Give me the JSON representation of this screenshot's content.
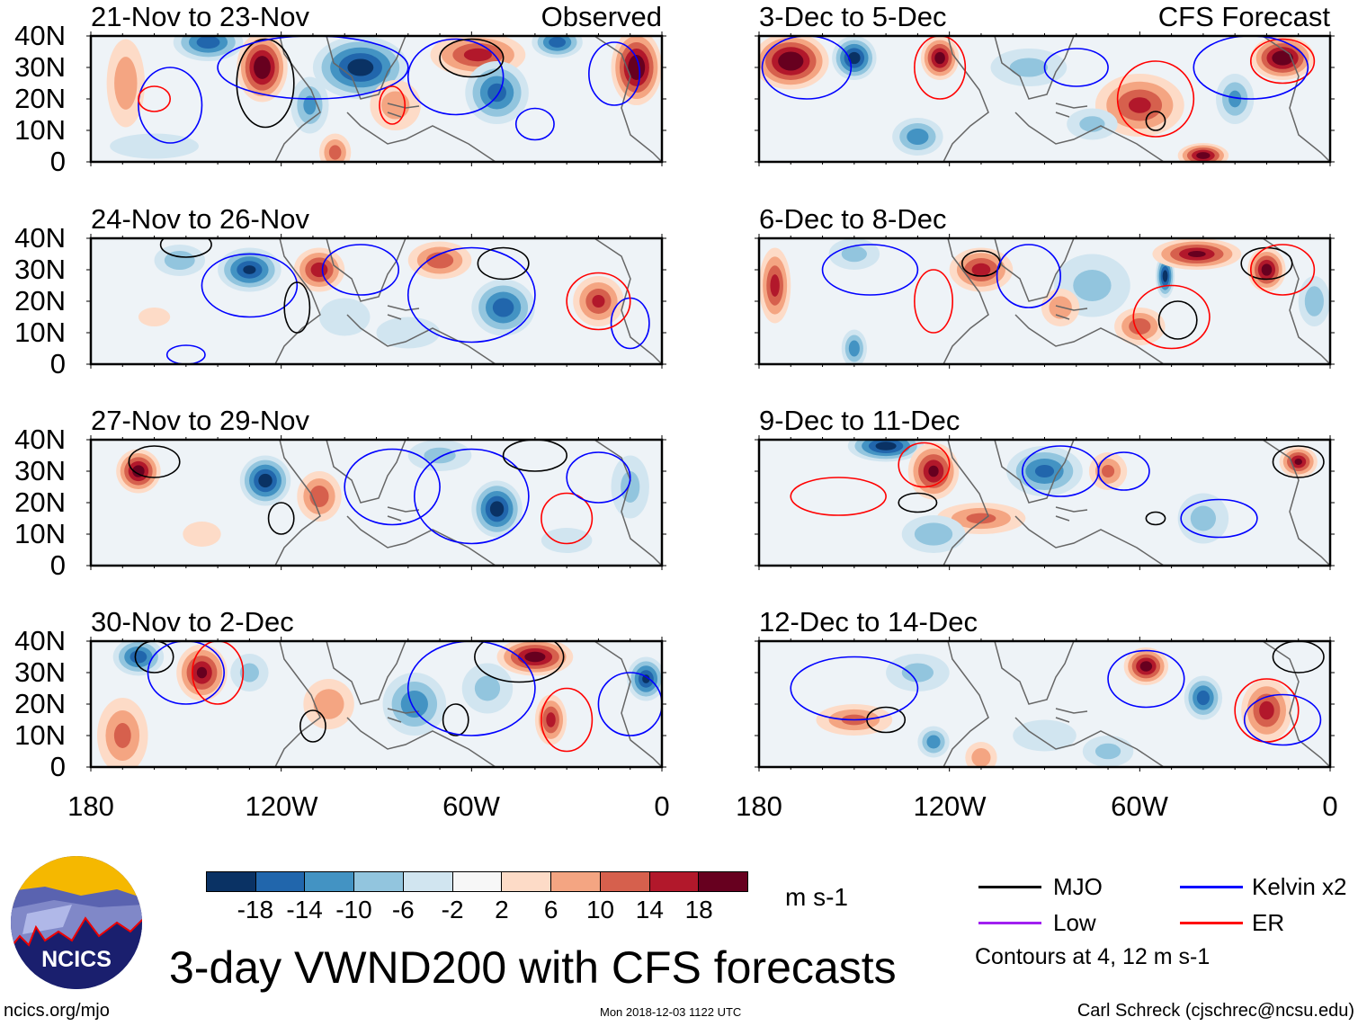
{
  "panels": [
    {
      "title": "21-Nov to 23-Nov",
      "label": "Observed"
    },
    {
      "title": "3-Dec to 5-Dec",
      "label": "CFS Forecast"
    },
    {
      "title": "24-Nov to 26-Nov"
    },
    {
      "title": "6-Dec to 8-Dec"
    },
    {
      "title": "27-Nov to 29-Nov"
    },
    {
      "title": "9-Dec to 11-Dec"
    },
    {
      "title": "30-Nov to 2-Dec"
    },
    {
      "title": "12-Dec to 14-Dec"
    }
  ],
  "lat_ticks": [
    "40N",
    "30N",
    "20N",
    "10N",
    "0"
  ],
  "lon_ticks": [
    "180",
    "120W",
    "60W",
    "0"
  ],
  "colorbar": {
    "colors": [
      "#0a3264",
      "#2166ac",
      "#4393c3",
      "#92c5de",
      "#d1e5f0",
      "#f7f7f7",
      "#fddbc7",
      "#f4a582",
      "#d6604d",
      "#b2182b",
      "#67001f"
    ],
    "labels": [
      "-18",
      "-14",
      "-10",
      "-6",
      "-2",
      "2",
      "6",
      "10",
      "14",
      "18"
    ],
    "units": "m s-1"
  },
  "legend": {
    "items": [
      {
        "label": "MJO",
        "color": "#000000"
      },
      {
        "label": "Kelvin x2",
        "color": "#0000ff"
      },
      {
        "label": "Low",
        "color": "#a020f0"
      },
      {
        "label": "ER",
        "color": "#ff0000"
      }
    ],
    "note": "Contours at 4, 12 m s-1"
  },
  "title": "3-day VWND200 with CFS forecasts",
  "logo_text": "NCICS",
  "footer": {
    "left": "ncics.org/mjo",
    "center": "Mon 2018-12-03 1122 UTC",
    "right": "Carl Schreck (cjschrec@ncsu.edu)"
  }
}
